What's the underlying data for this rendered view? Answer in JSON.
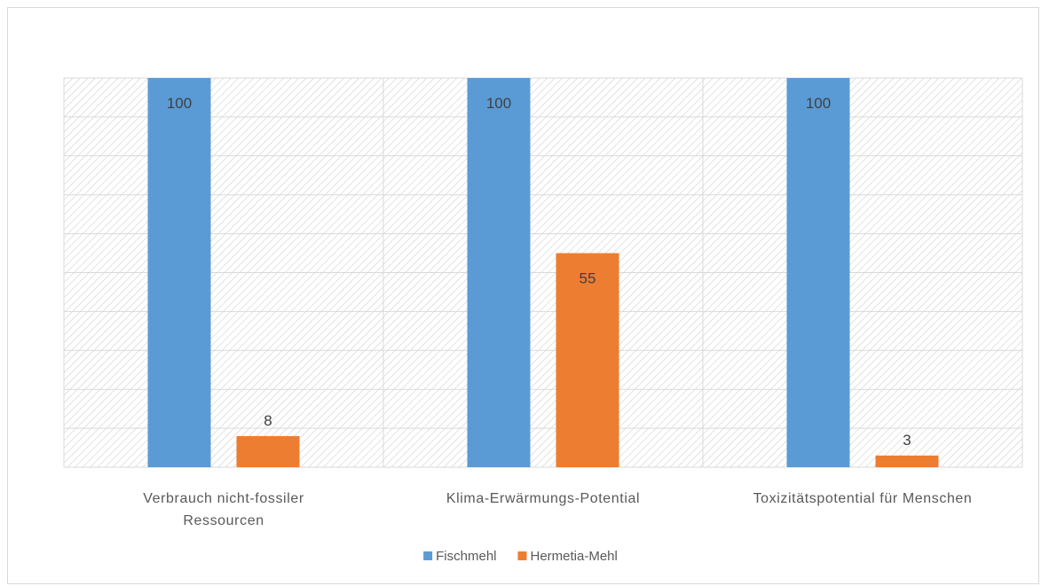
{
  "chart_data": {
    "type": "bar",
    "title": "",
    "xlabel": "",
    "ylabel": "",
    "ylim": [
      0,
      100
    ],
    "grid": true,
    "legend_position": "bottom",
    "categories": [
      [
        "Verbrauch nicht-fossiler",
        "Ressourcen"
      ],
      [
        "Klima-Erwärmungs-Potential"
      ],
      [
        "Toxizitätspotential für Menschen"
      ]
    ],
    "series": [
      {
        "name": "Fischmehl",
        "color": "#5b9bd5",
        "values": [
          100,
          100,
          100
        ],
        "labels": [
          "100",
          "100",
          "100"
        ]
      },
      {
        "name": "Hermetia-Mehl",
        "color": "#ed7d31",
        "values": [
          8,
          55,
          3
        ],
        "labels": [
          "8",
          "55",
          "3"
        ]
      }
    ]
  }
}
